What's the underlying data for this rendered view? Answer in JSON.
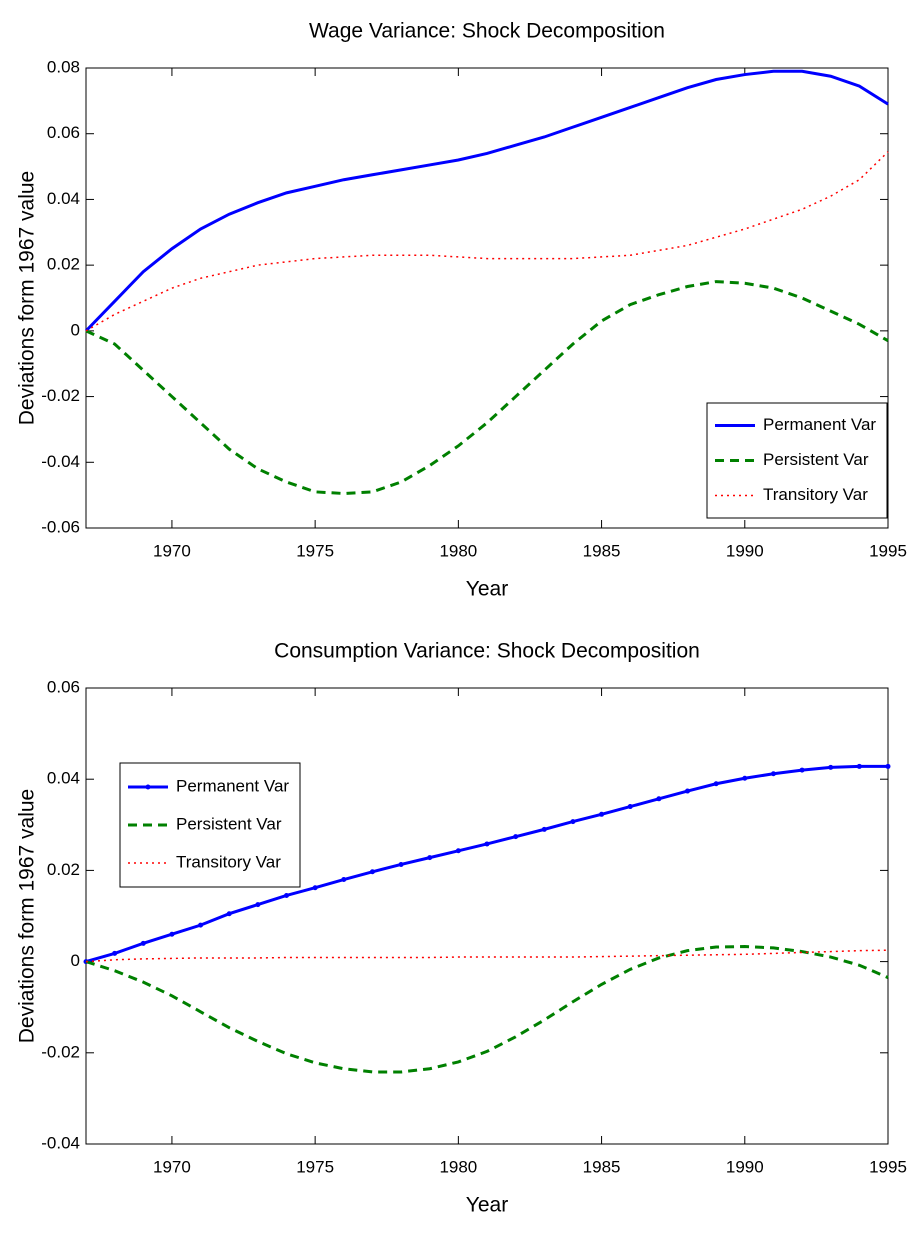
{
  "chart_data": [
    {
      "type": "line",
      "title": "Wage Variance: Shock Decomposition",
      "xlabel": "Year",
      "ylabel": "Deviations form 1967 value",
      "x": [
        1967,
        1968,
        1969,
        1970,
        1971,
        1972,
        1973,
        1974,
        1975,
        1976,
        1977,
        1978,
        1979,
        1980,
        1981,
        1982,
        1983,
        1984,
        1985,
        1986,
        1987,
        1988,
        1989,
        1990,
        1991,
        1992,
        1993,
        1994,
        1995
      ],
      "xlim": [
        1967,
        1995
      ],
      "xticks": [
        1970,
        1975,
        1980,
        1985,
        1990,
        1995
      ],
      "ylim": [
        -0.06,
        0.08
      ],
      "yticks": [
        -0.06,
        -0.04,
        -0.02,
        0,
        0.02,
        0.04,
        0.06,
        0.08
      ],
      "legend": "lower right",
      "series": [
        {
          "name": "Permanent Var",
          "color": "#0000ff",
          "style": "solid",
          "marker": false,
          "values": [
            0,
            0.009,
            0.018,
            0.025,
            0.031,
            0.0355,
            0.039,
            0.042,
            0.044,
            0.046,
            0.0475,
            0.049,
            0.0505,
            0.052,
            0.054,
            0.0565,
            0.059,
            0.062,
            0.065,
            0.068,
            0.071,
            0.074,
            0.0765,
            0.078,
            0.079,
            0.079,
            0.0775,
            0.0745,
            0.069
          ]
        },
        {
          "name": "Persistent Var",
          "color": "#008000",
          "style": "dashed",
          "marker": false,
          "values": [
            0,
            -0.004,
            -0.012,
            -0.02,
            -0.028,
            -0.036,
            -0.042,
            -0.046,
            -0.049,
            -0.0495,
            -0.049,
            -0.046,
            -0.041,
            -0.035,
            -0.028,
            -0.02,
            -0.012,
            -0.004,
            0.003,
            0.008,
            0.011,
            0.0135,
            0.015,
            0.0145,
            0.013,
            0.01,
            0.006,
            0.002,
            -0.003
          ]
        },
        {
          "name": "Transitory Var",
          "color": "#ff0000",
          "style": "dotted",
          "marker": false,
          "values": [
            0,
            0.005,
            0.009,
            0.013,
            0.016,
            0.018,
            0.02,
            0.021,
            0.022,
            0.0225,
            0.023,
            0.023,
            0.023,
            0.0225,
            0.022,
            0.022,
            0.022,
            0.022,
            0.0225,
            0.023,
            0.0245,
            0.026,
            0.0285,
            0.031,
            0.034,
            0.037,
            0.041,
            0.046,
            0.0545
          ]
        }
      ]
    },
    {
      "type": "line",
      "title": "Consumption Variance: Shock Decomposition",
      "xlabel": "Year",
      "ylabel": "Deviations form 1967 value",
      "x": [
        1967,
        1968,
        1969,
        1970,
        1971,
        1972,
        1973,
        1974,
        1975,
        1976,
        1977,
        1978,
        1979,
        1980,
        1981,
        1982,
        1983,
        1984,
        1985,
        1986,
        1987,
        1988,
        1989,
        1990,
        1991,
        1992,
        1993,
        1994,
        1995
      ],
      "xlim": [
        1967,
        1995
      ],
      "xticks": [
        1970,
        1975,
        1980,
        1985,
        1990,
        1995
      ],
      "ylim": [
        -0.04,
        0.06
      ],
      "yticks": [
        -0.04,
        -0.02,
        0,
        0.02,
        0.04,
        0.06
      ],
      "legend": "upper left",
      "series": [
        {
          "name": "Permanent Var",
          "color": "#0000ff",
          "style": "solid",
          "marker": true,
          "values": [
            0,
            0.0018,
            0.004,
            0.006,
            0.008,
            0.0105,
            0.0125,
            0.0145,
            0.0162,
            0.018,
            0.0197,
            0.0213,
            0.0228,
            0.0243,
            0.0258,
            0.0274,
            0.029,
            0.0307,
            0.0323,
            0.034,
            0.0357,
            0.0374,
            0.039,
            0.0402,
            0.0412,
            0.042,
            0.0426,
            0.0428,
            0.0428
          ]
        },
        {
          "name": "Persistent Var",
          "color": "#008000",
          "style": "dashed",
          "marker": false,
          "values": [
            0,
            -0.002,
            -0.0045,
            -0.0075,
            -0.011,
            -0.0145,
            -0.0175,
            -0.0202,
            -0.0222,
            -0.0235,
            -0.0242,
            -0.0242,
            -0.0235,
            -0.022,
            -0.0197,
            -0.0165,
            -0.0128,
            -0.0088,
            -0.005,
            -0.0017,
            0.0008,
            0.0024,
            0.0032,
            0.0033,
            0.003,
            0.0022,
            0.001,
            -0.0008,
            -0.0035
          ]
        },
        {
          "name": "Transitory Var",
          "color": "#ff0000",
          "style": "dotted",
          "marker": false,
          "values": [
            0,
            0.0004,
            0.0006,
            0.0007,
            0.0008,
            0.0008,
            0.0008,
            0.0009,
            0.0009,
            0.0009,
            0.0009,
            0.0009,
            0.0009,
            0.001,
            0.001,
            0.001,
            0.001,
            0.001,
            0.0011,
            0.0012,
            0.0013,
            0.0014,
            0.0015,
            0.0016,
            0.0018,
            0.002,
            0.0022,
            0.0024,
            0.0025
          ]
        }
      ]
    }
  ]
}
